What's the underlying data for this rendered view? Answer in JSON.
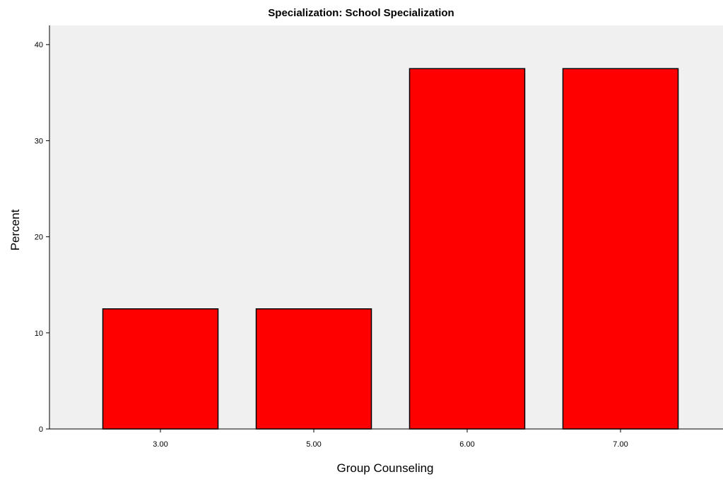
{
  "chart_data": {
    "type": "bar",
    "title": "Specialization: School Specialization",
    "xlabel": "Group Counseling",
    "ylabel": "Percent",
    "categories": [
      "3.00",
      "5.00",
      "6.00",
      "7.00"
    ],
    "values": [
      12.5,
      12.5,
      37.5,
      37.5
    ],
    "ylim": [
      0,
      42
    ],
    "yticks": [
      0,
      10,
      20,
      30,
      40
    ],
    "grid": false,
    "bar_color": "#ff0000",
    "plot_background": "#f0f0f0"
  }
}
